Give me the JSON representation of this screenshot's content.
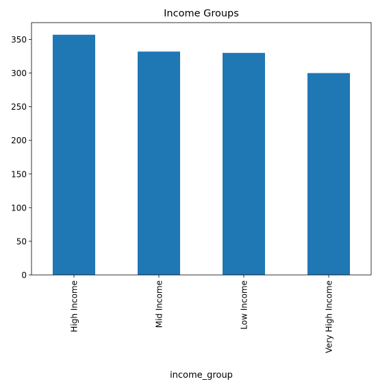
{
  "chart_data": {
    "type": "bar",
    "title": "Income Groups",
    "xlabel": "income_group",
    "ylabel": "",
    "categories": [
      "High Income",
      "Mid Income",
      "Low Income",
      "Very High Income"
    ],
    "values": [
      357,
      332,
      330,
      300
    ],
    "ylim": [
      0,
      375
    ],
    "yticks": [
      0,
      50,
      100,
      150,
      200,
      250,
      300,
      350
    ],
    "ytick_labels": [
      "0",
      "50",
      "100",
      "150",
      "200",
      "250",
      "300",
      "350"
    ],
    "bar_color": "#1f77b4",
    "grid": false,
    "legend": "none"
  }
}
